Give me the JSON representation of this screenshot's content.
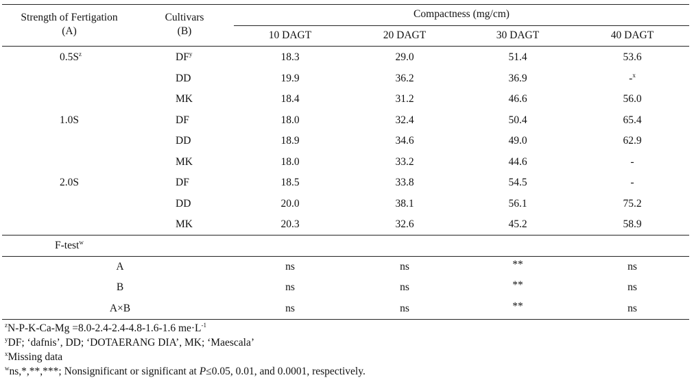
{
  "header": {
    "col_a_line1": "Strength of Fertigation",
    "col_a_line2": "(A)",
    "col_b_line1": "Cultivars",
    "col_b_line2": "(B)",
    "group": "Compactness (mg/cm)",
    "days": [
      "10 DAGT",
      "20 DAGT",
      "30 DAGT",
      "40 DAGT"
    ]
  },
  "rows": [
    {
      "strength": "0.5S",
      "strength_sup": "z",
      "cultivar": "DF",
      "cultivar_sup": "y",
      "values": [
        "18.3",
        "29.0",
        "51.4",
        "53.6"
      ],
      "value4_sup": ""
    },
    {
      "strength": "",
      "strength_sup": "",
      "cultivar": "DD",
      "cultivar_sup": "",
      "values": [
        "19.9",
        "36.2",
        "36.9",
        "-"
      ],
      "value4_sup": "x"
    },
    {
      "strength": "",
      "strength_sup": "",
      "cultivar": "MK",
      "cultivar_sup": "",
      "values": [
        "18.4",
        "31.2",
        "46.6",
        "56.0"
      ],
      "value4_sup": ""
    },
    {
      "strength": "1.0S",
      "strength_sup": "",
      "cultivar": "DF",
      "cultivar_sup": "",
      "values": [
        "18.0",
        "32.4",
        "50.4",
        "65.4"
      ],
      "value4_sup": ""
    },
    {
      "strength": "",
      "strength_sup": "",
      "cultivar": "DD",
      "cultivar_sup": "",
      "values": [
        "18.9",
        "34.6",
        "49.0",
        "62.9"
      ],
      "value4_sup": ""
    },
    {
      "strength": "",
      "strength_sup": "",
      "cultivar": "MK",
      "cultivar_sup": "",
      "values": [
        "18.0",
        "33.2",
        "44.6",
        "-"
      ],
      "value4_sup": ""
    },
    {
      "strength": "2.0S",
      "strength_sup": "",
      "cultivar": "DF",
      "cultivar_sup": "",
      "values": [
        "18.5",
        "33.8",
        "54.5",
        "-"
      ],
      "value4_sup": ""
    },
    {
      "strength": "",
      "strength_sup": "",
      "cultivar": "DD",
      "cultivar_sup": "",
      "values": [
        "20.0",
        "38.1",
        "56.1",
        "75.2"
      ],
      "value4_sup": ""
    },
    {
      "strength": "",
      "strength_sup": "",
      "cultivar": "MK",
      "cultivar_sup": "",
      "values": [
        "20.3",
        "32.6",
        "45.2",
        "58.9"
      ],
      "value4_sup": ""
    }
  ],
  "ftest": {
    "label": "F-test",
    "label_sup": "w",
    "rows": [
      {
        "factor": "A",
        "values": [
          "ns",
          "ns",
          "**",
          "ns"
        ]
      },
      {
        "factor": "B",
        "values": [
          "ns",
          "ns",
          "**",
          "ns"
        ]
      },
      {
        "factor": "A×B",
        "values": [
          "ns",
          "ns",
          "**",
          "ns"
        ]
      }
    ]
  },
  "footnotes": {
    "z_mark": "z",
    "z_text": "N-P-K-Ca-Mg =8.0-2.4-2.4-4.8-1.6-1.6 me·L",
    "z_exp": "-1",
    "y_mark": "y",
    "y_text": "DF; ‘dafnis’, DD; ‘DOTAERANG DIA’, MK; ‘Maescala’",
    "x_mark": "x",
    "x_text": "Missing data",
    "w_mark": "w",
    "w_text_a": "ns,*,**,***; Nonsignificant or significant at ",
    "w_p": "P",
    "w_text_b": "≤0.05, 0.01, and 0.0001, respectively."
  }
}
